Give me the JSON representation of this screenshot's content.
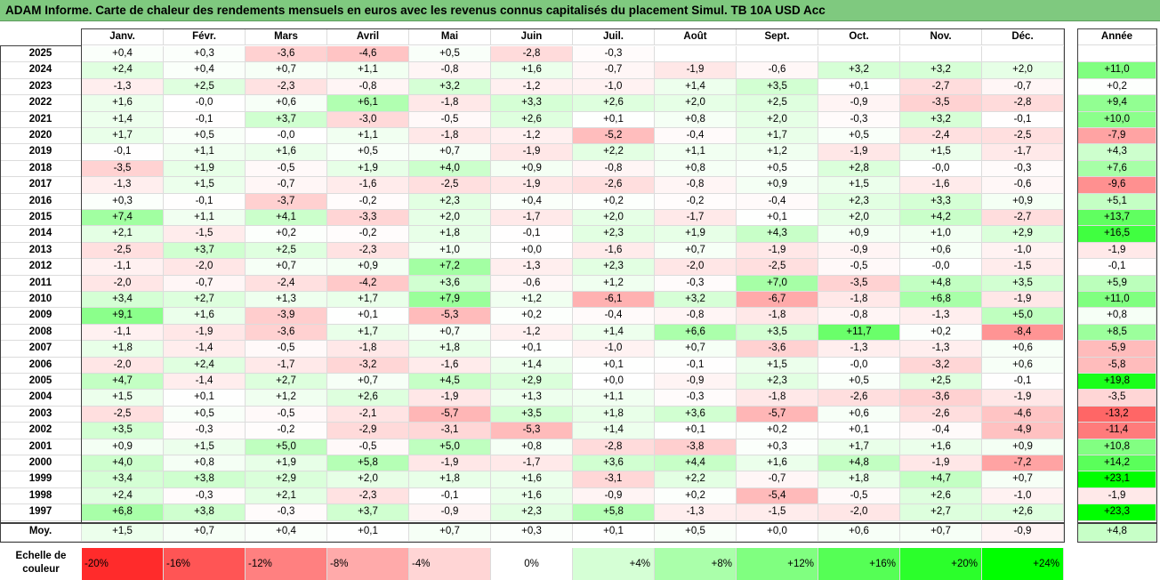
{
  "title": "ADAM Informe. Carte de chaleur des rendements mensuels en euros avec les revenus connus capitalisés du placement Simul. TB 10A USD Acc",
  "chart_data": {
    "type": "heatmap",
    "months": [
      "Janv.",
      "Févr.",
      "Mars",
      "Avril",
      "Mai",
      "Juin",
      "Juil.",
      "Août",
      "Sept.",
      "Oct.",
      "Nov.",
      "Déc."
    ],
    "year_header": "Année",
    "rows": [
      {
        "year": "2025",
        "values": [
          "+0,4",
          "+0,3",
          "-3,6",
          "-4,6",
          "+0,5",
          "-2,8",
          "-0,3",
          "",
          "",
          "",
          "",
          ""
        ],
        "annual": ""
      },
      {
        "year": "2024",
        "values": [
          "+2,4",
          "+0,4",
          "+0,7",
          "+1,1",
          "-0,8",
          "+1,6",
          "-0,7",
          "-1,9",
          "-0,6",
          "+3,2",
          "+3,2",
          "+2,0"
        ],
        "annual": "+11,0"
      },
      {
        "year": "2023",
        "values": [
          "-1,3",
          "+2,5",
          "-2,3",
          "-0,8",
          "+3,2",
          "-1,2",
          "-1,0",
          "+1,4",
          "+3,5",
          "+0,1",
          "-2,7",
          "-0,7"
        ],
        "annual": "+0,2"
      },
      {
        "year": "2022",
        "values": [
          "+1,6",
          "-0,0",
          "+0,6",
          "+6,1",
          "-1,8",
          "+3,3",
          "+2,6",
          "+2,0",
          "+2,5",
          "-0,9",
          "-3,5",
          "-2,8"
        ],
        "annual": "+9,4"
      },
      {
        "year": "2021",
        "values": [
          "+1,4",
          "-0,1",
          "+3,7",
          "-3,0",
          "-0,5",
          "+2,6",
          "+0,1",
          "+0,8",
          "+2,0",
          "-0,3",
          "+3,2",
          "-0,1"
        ],
        "annual": "+10,0"
      },
      {
        "year": "2020",
        "values": [
          "+1,7",
          "+0,5",
          "-0,0",
          "+1,1",
          "-1,8",
          "-1,2",
          "-5,2",
          "-0,4",
          "+1,7",
          "+0,5",
          "-2,4",
          "-2,5"
        ],
        "annual": "-7,9"
      },
      {
        "year": "2019",
        "values": [
          "-0,1",
          "+1,1",
          "+1,6",
          "+0,5",
          "+0,7",
          "-1,9",
          "+2,2",
          "+1,1",
          "+1,2",
          "-1,9",
          "+1,5",
          "-1,7"
        ],
        "annual": "+4,3"
      },
      {
        "year": "2018",
        "values": [
          "-3,5",
          "+1,9",
          "-0,5",
          "+1,9",
          "+4,0",
          "+0,9",
          "-0,8",
          "+0,8",
          "+0,5",
          "+2,8",
          "-0,0",
          "-0,3"
        ],
        "annual": "+7,6"
      },
      {
        "year": "2017",
        "values": [
          "-1,3",
          "+1,5",
          "-0,7",
          "-1,6",
          "-2,5",
          "-1,9",
          "-2,6",
          "-0,8",
          "+0,9",
          "+1,5",
          "-1,6",
          "-0,6"
        ],
        "annual": "-9,6"
      },
      {
        "year": "2016",
        "values": [
          "+0,3",
          "-0,1",
          "-3,7",
          "-0,2",
          "+2,3",
          "+0,4",
          "+0,2",
          "-0,2",
          "-0,4",
          "+2,3",
          "+3,3",
          "+0,9"
        ],
        "annual": "+5,1"
      },
      {
        "year": "2015",
        "values": [
          "+7,4",
          "+1,1",
          "+4,1",
          "-3,3",
          "+2,0",
          "-1,7",
          "+2,0",
          "-1,7",
          "+0,1",
          "+2,0",
          "+4,2",
          "-2,7"
        ],
        "annual": "+13,7"
      },
      {
        "year": "2014",
        "values": [
          "+2,1",
          "-1,5",
          "+0,2",
          "-0,2",
          "+1,8",
          "-0,1",
          "+2,3",
          "+1,9",
          "+4,3",
          "+0,9",
          "+1,0",
          "+2,9"
        ],
        "annual": "+16,5"
      },
      {
        "year": "2013",
        "values": [
          "-2,5",
          "+3,7",
          "+2,5",
          "-2,3",
          "+1,0",
          "+0,0",
          "-1,6",
          "+0,7",
          "-1,9",
          "-0,9",
          "+0,6",
          "-1,0"
        ],
        "annual": "-1,9"
      },
      {
        "year": "2012",
        "values": [
          "-1,1",
          "-2,0",
          "+0,7",
          "+0,9",
          "+7,2",
          "-1,3",
          "+2,3",
          "-2,0",
          "-2,5",
          "-0,5",
          "-0,0",
          "-1,5"
        ],
        "annual": "-0,1"
      },
      {
        "year": "2011",
        "values": [
          "-2,0",
          "-0,7",
          "-2,4",
          "-4,2",
          "+3,6",
          "-0,6",
          "+1,2",
          "-0,3",
          "+7,0",
          "-3,5",
          "+4,8",
          "+3,5"
        ],
        "annual": "+5,9"
      },
      {
        "year": "2010",
        "values": [
          "+3,4",
          "+2,7",
          "+1,3",
          "+1,7",
          "+7,9",
          "+1,2",
          "-6,1",
          "+3,2",
          "-6,7",
          "-1,8",
          "+6,8",
          "-1,9"
        ],
        "annual": "+11,0"
      },
      {
        "year": "2009",
        "values": [
          "+9,1",
          "+1,6",
          "-3,9",
          "+0,1",
          "-5,3",
          "+0,2",
          "-0,4",
          "-0,8",
          "-1,8",
          "-0,8",
          "-1,3",
          "+5,0"
        ],
        "annual": "+0,8"
      },
      {
        "year": "2008",
        "values": [
          "-1,1",
          "-1,9",
          "-3,6",
          "+1,7",
          "+0,7",
          "-1,2",
          "+1,4",
          "+6,6",
          "+3,5",
          "+11,7",
          "+0,2",
          "-8,4"
        ],
        "annual": "+8,5"
      },
      {
        "year": "2007",
        "values": [
          "+1,8",
          "-1,4",
          "-0,5",
          "-1,8",
          "+1,8",
          "+0,1",
          "-1,0",
          "+0,7",
          "-3,6",
          "-1,3",
          "-1,3",
          "+0,6"
        ],
        "annual": "-5,9"
      },
      {
        "year": "2006",
        "values": [
          "-2,0",
          "+2,4",
          "-1,7",
          "-3,2",
          "-1,6",
          "+1,4",
          "+0,1",
          "-0,1",
          "+1,5",
          "-0,0",
          "-3,2",
          "+0,6"
        ],
        "annual": "-5,8"
      },
      {
        "year": "2005",
        "values": [
          "+4,7",
          "-1,4",
          "+2,7",
          "+0,7",
          "+4,5",
          "+2,9",
          "+0,0",
          "-0,9",
          "+2,3",
          "+0,5",
          "+2,5",
          "-0,1"
        ],
        "annual": "+19,8"
      },
      {
        "year": "2004",
        "values": [
          "+1,5",
          "+0,1",
          "+1,2",
          "+2,6",
          "-1,9",
          "+1,3",
          "+1,1",
          "-0,3",
          "-1,8",
          "-2,6",
          "-3,6",
          "-1,9"
        ],
        "annual": "-3,5"
      },
      {
        "year": "2003",
        "values": [
          "-2,5",
          "+0,5",
          "-0,5",
          "-2,1",
          "-5,7",
          "+3,5",
          "+1,8",
          "+3,6",
          "-5,7",
          "+0,6",
          "-2,6",
          "-4,6"
        ],
        "annual": "-13,2"
      },
      {
        "year": "2002",
        "values": [
          "+3,5",
          "-0,3",
          "-0,2",
          "-2,9",
          "-3,1",
          "-5,3",
          "+1,4",
          "+0,1",
          "+0,2",
          "+0,1",
          "-0,4",
          "-4,9"
        ],
        "annual": "-11,4"
      },
      {
        "year": "2001",
        "values": [
          "+0,9",
          "+1,5",
          "+5,0",
          "-0,5",
          "+5,0",
          "+0,8",
          "-2,8",
          "-3,8",
          "+0,3",
          "+1,7",
          "+1,6",
          "+0,9"
        ],
        "annual": "+10,8"
      },
      {
        "year": "2000",
        "values": [
          "+4,0",
          "+0,8",
          "+1,9",
          "+5,8",
          "-1,9",
          "-1,7",
          "+3,6",
          "+4,4",
          "+1,6",
          "+4,8",
          "-1,9",
          "-7,2"
        ],
        "annual": "+14,2"
      },
      {
        "year": "1999",
        "values": [
          "+3,4",
          "+3,8",
          "+2,9",
          "+2,0",
          "+1,8",
          "+1,6",
          "-3,1",
          "+2,2",
          "-0,7",
          "+1,8",
          "+4,7",
          "+0,7"
        ],
        "annual": "+23,1"
      },
      {
        "year": "1998",
        "values": [
          "+2,4",
          "-0,3",
          "+2,1",
          "-2,3",
          "-0,1",
          "+1,6",
          "-0,9",
          "+0,2",
          "-5,4",
          "-0,5",
          "+2,6",
          "-1,0"
        ],
        "annual": "-1,9"
      },
      {
        "year": "1997",
        "values": [
          "+6,8",
          "+3,8",
          "-0,3",
          "+3,7",
          "-0,9",
          "+2,3",
          "+5,8",
          "-1,3",
          "-1,5",
          "-2,0",
          "+2,7",
          "+2,6"
        ],
        "annual": "+23,3"
      }
    ],
    "average": {
      "label": "Moy.",
      "values": [
        "+1,5",
        "+0,7",
        "+0,4",
        "+0,1",
        "+0,7",
        "+0,3",
        "+0,1",
        "+0,5",
        "+0,0",
        "+0,6",
        "+0,7",
        "-0,9"
      ],
      "annual": "+4,8"
    },
    "color_scale": {
      "label_line1": "Echelle de",
      "label_line2": "couleur",
      "labels": [
        "-20%",
        "-16%",
        "-12%",
        "-8%",
        "-4%",
        "0%",
        "+4%",
        "+8%",
        "+12%",
        "+16%",
        "+20%",
        "+24%"
      ],
      "steps": [
        -20,
        -16,
        -12,
        -8,
        -4,
        0,
        4,
        8,
        12,
        16,
        20,
        24
      ]
    },
    "colors": {
      "negative": "#ff0000",
      "positive": "#00ff00",
      "neutral": "#ffffff"
    }
  }
}
